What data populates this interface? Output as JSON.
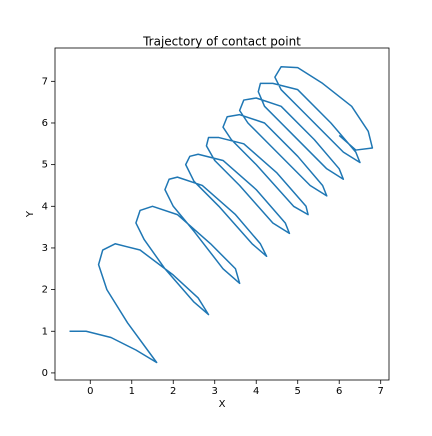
{
  "chart_data": {
    "type": "line",
    "title": "Trajectory of contact point",
    "xlabel": "X",
    "ylabel": "Y",
    "color": "#1f77b4",
    "x": [
      -0.5,
      -0.1,
      0.5,
      1.1,
      1.6,
      0.9,
      0.4,
      0.2,
      0.3,
      0.6,
      1.2,
      2.0,
      2.6,
      2.85,
      2.5,
      1.8,
      1.3,
      1.1,
      1.2,
      1.5,
      2.1,
      2.9,
      3.5,
      3.6,
      3.2,
      2.5,
      2.0,
      1.8,
      1.9,
      2.1,
      2.7,
      3.5,
      4.1,
      4.25,
      3.9,
      3.1,
      2.5,
      2.3,
      2.4,
      2.6,
      3.2,
      4.0,
      4.7,
      4.8,
      4.4,
      3.6,
      3.0,
      2.8,
      2.85,
      3.1,
      3.7,
      4.5,
      5.2,
      5.25,
      4.9,
      4.0,
      3.4,
      3.2,
      3.3,
      3.6,
      4.2,
      5.0,
      5.6,
      5.7,
      5.3,
      4.4,
      3.8,
      3.6,
      3.7,
      4.0,
      4.6,
      5.4,
      6.0,
      6.1,
      5.7,
      4.8,
      4.2,
      4.05,
      4.1,
      4.4,
      5.0,
      5.8,
      6.4,
      6.5,
      6.1,
      5.2,
      4.6,
      4.45,
      4.6,
      5.0,
      5.6,
      6.3,
      6.7,
      6.8,
      6.4,
      6.0
    ],
    "y": [
      1.0,
      1.0,
      0.85,
      0.55,
      0.25,
      1.2,
      2.0,
      2.6,
      2.95,
      3.1,
      2.95,
      2.35,
      1.8,
      1.4,
      1.7,
      2.5,
      3.2,
      3.6,
      3.9,
      4.0,
      3.8,
      3.1,
      2.5,
      2.15,
      2.5,
      3.4,
      4.0,
      4.4,
      4.65,
      4.7,
      4.5,
      3.8,
      3.1,
      2.8,
      3.1,
      4.0,
      4.6,
      5.0,
      5.2,
      5.25,
      5.1,
      4.4,
      3.6,
      3.35,
      3.6,
      4.5,
      5.1,
      5.45,
      5.65,
      5.65,
      5.5,
      4.8,
      4.0,
      3.8,
      4.0,
      5.0,
      5.6,
      5.9,
      6.15,
      6.2,
      6.0,
      5.2,
      4.5,
      4.25,
      4.5,
      5.4,
      6.0,
      6.3,
      6.55,
      6.6,
      6.4,
      5.6,
      4.9,
      4.65,
      4.9,
      5.8,
      6.4,
      6.75,
      6.95,
      6.95,
      6.8,
      6.0,
      5.3,
      5.05,
      5.3,
      6.2,
      6.8,
      7.1,
      7.35,
      7.33,
      6.95,
      6.4,
      5.8,
      5.4,
      5.35,
      5.7
    ],
    "xlim": [
      -0.85,
      7.2
    ],
    "ylim": [
      -0.17,
      7.8
    ],
    "xticks": [
      0,
      1,
      2,
      3,
      4,
      5,
      6,
      7
    ],
    "yticks": [
      0,
      1,
      2,
      3,
      4,
      5,
      6,
      7
    ]
  }
}
